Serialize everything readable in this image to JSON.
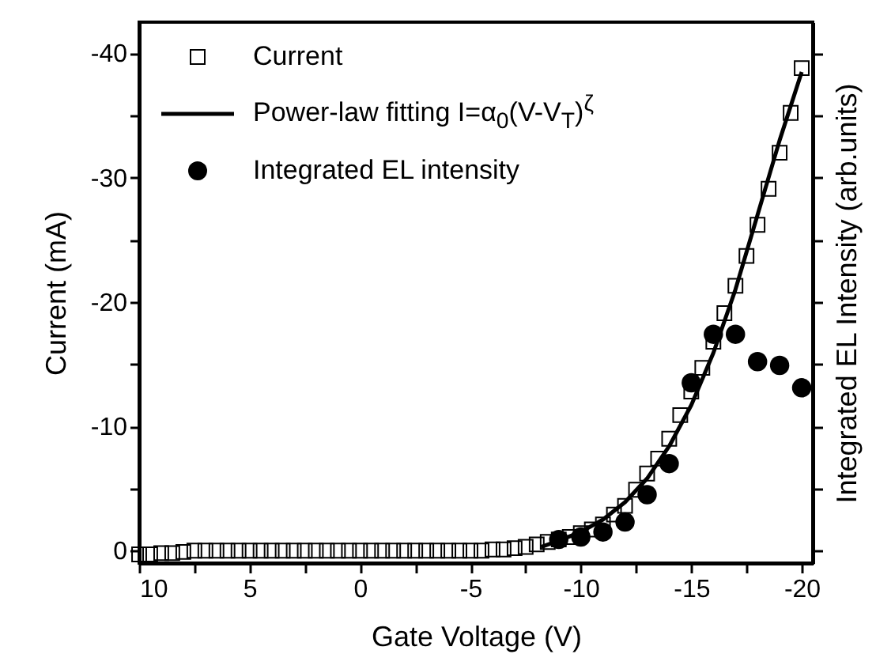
{
  "chart_data": {
    "type": "scatter",
    "xlabel": "Gate Voltage (V)",
    "ylabel": "Current (mA)",
    "y2label": "Integrated EL Intensity (arb.units)",
    "xlim": [
      10,
      -20.5
    ],
    "ylim": [
      1,
      -42.5
    ],
    "xticks": [
      10,
      {
        "value": 7.5,
        "label": null
      },
      5,
      {
        "value": 2.5,
        "label": null
      },
      0,
      {
        "value": -2.5,
        "label": null
      },
      -5,
      {
        "value": -7.5,
        "label": null
      },
      -10,
      {
        "value": -12.5,
        "label": null
      },
      -15,
      {
        "value": -17.5,
        "label": null
      },
      -20
    ],
    "yticks": [
      0,
      {
        "value": -5,
        "label": null
      },
      -10,
      {
        "value": -15,
        "label": null
      },
      -20,
      {
        "value": -25,
        "label": null
      },
      -30,
      {
        "value": -35,
        "label": null
      },
      -40
    ],
    "grid": false,
    "legend": "top left",
    "tick_labels": "xy",
    "series": [
      {
        "name": "Current",
        "marker": "square",
        "color": "#000000",
        "x": [
          10,
          9.5,
          9,
          8.5,
          8,
          7.5,
          7,
          6.5,
          6,
          5.5,
          5,
          4.5,
          4,
          3.5,
          3,
          2.5,
          2,
          1.5,
          1,
          0.5,
          0,
          -0.5,
          -1,
          -1.5,
          -2,
          -2.5,
          -3,
          -3.5,
          -4,
          -4.5,
          -5,
          -5.5,
          -6,
          -6.5,
          -7,
          -7.5,
          -8,
          -8.5,
          -9,
          -9.5,
          -10,
          -10.5,
          -11,
          -11.5,
          -12,
          -12.5,
          -13,
          -13.5,
          -14,
          -14.5,
          -15,
          -15.5,
          -16,
          -16.5,
          -17,
          -17.5,
          -18,
          -18.5,
          -19,
          -19.5,
          -20
        ],
        "values": [
          0.3,
          0.3,
          0.2,
          0.2,
          0.1,
          0,
          0,
          0,
          0,
          0,
          0,
          0,
          0,
          0,
          0,
          0,
          0,
          0,
          0,
          0,
          0,
          0,
          0,
          0,
          0,
          0,
          0,
          0,
          0,
          0,
          0,
          0,
          -0.1,
          -0.1,
          -0.2,
          -0.3,
          -0.5,
          -0.7,
          -0.9,
          -1.1,
          -1.4,
          -1.7,
          -2.1,
          -2.9,
          -3.6,
          -4.9,
          -6.2,
          -7.4,
          -9,
          -10.9,
          -12.8,
          -14.7,
          -16.8,
          -19.1,
          -21.3,
          -23.7,
          -26.2,
          -29.1,
          -32,
          -35.2,
          -38.8
        ]
      },
      {
        "name": "Power-law fitting I=α$_{0}$(V-V$_{T}$)$^{ζ}$",
        "type": "line",
        "marker": "none",
        "line_style": "solid",
        "color": "#000000",
        "x": [
          -8.2,
          -9,
          -10,
          -11,
          -12,
          -13,
          -14,
          -15,
          -16,
          -17,
          -18,
          -19,
          -20
        ],
        "values": [
          -0.3,
          -0.8,
          -1.5,
          -2.5,
          -3.9,
          -5.8,
          -8.4,
          -11.7,
          -15.9,
          -21,
          -27,
          -33,
          -38.5
        ]
      },
      {
        "name": "Integrated EL intensity",
        "marker": "circle",
        "color": "#000000",
        "x": [
          -9,
          -10,
          -11,
          -12,
          -13,
          -14,
          -15,
          -16,
          -17,
          -18,
          -19,
          -20
        ],
        "values": [
          -0.9,
          -1.1,
          -1.5,
          -2.3,
          -4.5,
          -7,
          -13.5,
          -17.4,
          -17.4,
          -15.2,
          -14.9,
          -13.1
        ]
      }
    ]
  }
}
